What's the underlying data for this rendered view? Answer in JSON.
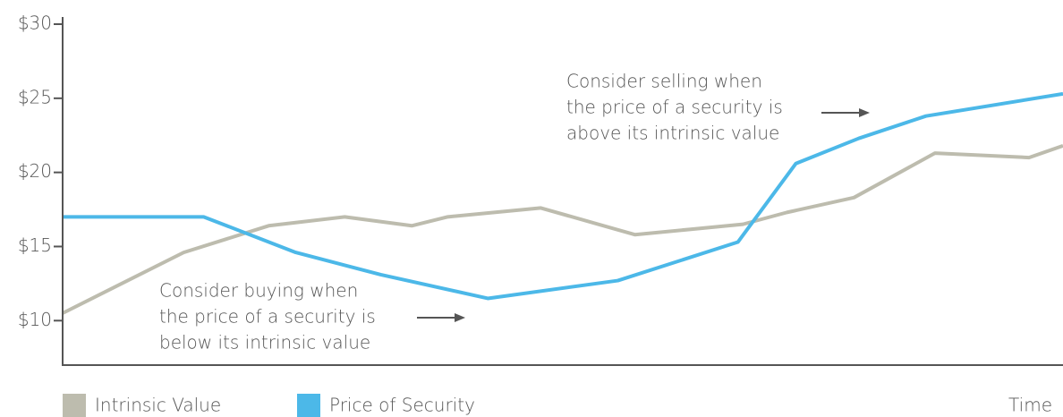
{
  "chart_data": {
    "type": "line",
    "x_label": "Time",
    "xlim": [
      0,
      100
    ],
    "ylim": [
      7,
      30
    ],
    "yticks": [
      {
        "value": 10,
        "label": "$10"
      },
      {
        "value": 15,
        "label": "$15"
      },
      {
        "value": 20,
        "label": "$20"
      },
      {
        "value": 25,
        "label": "$25"
      },
      {
        "value": 30,
        "label": "$30"
      }
    ],
    "series": [
      {
        "name": "Intrinsic Value",
        "color": "#bdbcae",
        "x": [
          0,
          12.1,
          20.6,
          28.2,
          34.9,
          38.5,
          47.8,
          57.2,
          68.0,
          72.4,
          79.1,
          87.2,
          96.6,
          100
        ],
        "values": [
          10.5,
          14.6,
          16.4,
          17.0,
          16.4,
          17.0,
          17.6,
          15.8,
          16.5,
          17.3,
          18.3,
          21.3,
          21.0,
          21.8
        ]
      },
      {
        "name": "Price of Security",
        "color": "#4cb8e8",
        "x": [
          0,
          14.1,
          23.3,
          31.8,
          42.5,
          55.5,
          67.5,
          73.3,
          79.6,
          86.3,
          100
        ],
        "values": [
          17.0,
          17.0,
          14.6,
          13.1,
          11.5,
          12.7,
          15.3,
          20.6,
          22.3,
          23.8,
          25.3
        ]
      }
    ],
    "annotations": [
      {
        "lines": [
          "Consider selling when",
          "the price of a security is",
          "above its intrinsic value"
        ]
      },
      {
        "lines": [
          "Consider buying when",
          "the price of a security is",
          "below its intrinsic value"
        ]
      }
    ]
  }
}
